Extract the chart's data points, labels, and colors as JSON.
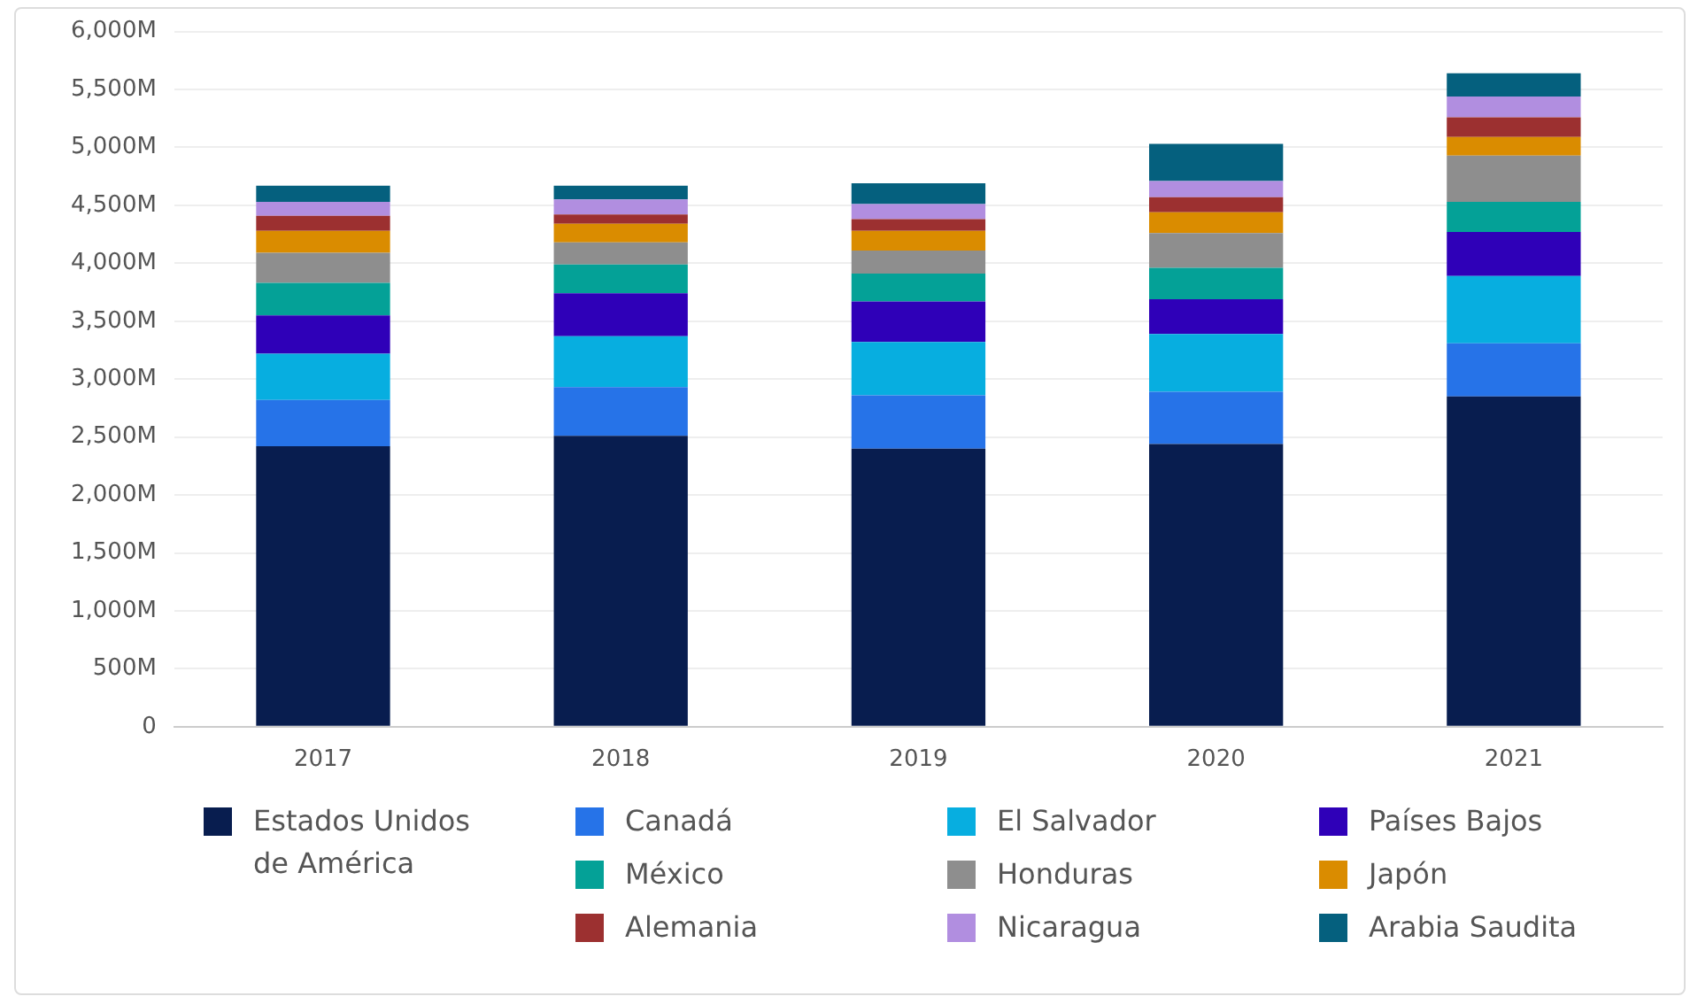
{
  "chart_data": {
    "type": "bar",
    "stacked": true,
    "categories": [
      "2017",
      "2018",
      "2019",
      "2020",
      "2021"
    ],
    "series": [
      {
        "name": "Estados Unidos de América",
        "color": "#081d4f",
        "values": [
          2420,
          2510,
          2400,
          2440,
          2850
        ]
      },
      {
        "name": "Canadá",
        "color": "#2673e8",
        "values": [
          400,
          420,
          460,
          450,
          460
        ]
      },
      {
        "name": "El Salvador",
        "color": "#07aee0",
        "values": [
          400,
          440,
          460,
          500,
          580
        ]
      },
      {
        "name": "Países Bajos",
        "color": "#2f00b8",
        "values": [
          330,
          370,
          350,
          300,
          380
        ]
      },
      {
        "name": "México",
        "color": "#04a197",
        "values": [
          280,
          250,
          240,
          270,
          260
        ]
      },
      {
        "name": "Honduras",
        "color": "#8e8e8e",
        "values": [
          260,
          190,
          200,
          300,
          400
        ]
      },
      {
        "name": "Japón",
        "color": "#da8c00",
        "values": [
          190,
          160,
          170,
          180,
          160
        ]
      },
      {
        "name": "Alemania",
        "color": "#9c3030",
        "values": [
          130,
          80,
          100,
          130,
          170
        ]
      },
      {
        "name": "Nicaragua",
        "color": "#b18ee0",
        "values": [
          120,
          130,
          130,
          140,
          180
        ]
      },
      {
        "name": "Arabia Saudita",
        "color": "#05607e",
        "values": [
          140,
          120,
          180,
          320,
          200
        ]
      }
    ],
    "ylim": [
      0,
      6000
    ],
    "yticks": [
      0,
      {
        "value": 500,
        "label": "500M"
      },
      {
        "value": 1000,
        "label": "1,000M"
      },
      {
        "value": 1500,
        "label": "1,500M"
      },
      {
        "value": 2000,
        "label": "2,000M"
      },
      {
        "value": 2500,
        "label": "2,500M"
      },
      {
        "value": 3000,
        "label": "3,000M"
      },
      {
        "value": 3500,
        "label": "3,500M"
      },
      {
        "value": 4000,
        "label": "4,000M"
      },
      {
        "value": 4500,
        "label": "4,500M"
      },
      {
        "value": 5000,
        "label": "5,000M"
      },
      {
        "value": 5500,
        "label": "5,500M"
      },
      {
        "value": 6000,
        "label": "6,000M"
      }
    ],
    "grid": "y",
    "legend": "bottom"
  }
}
